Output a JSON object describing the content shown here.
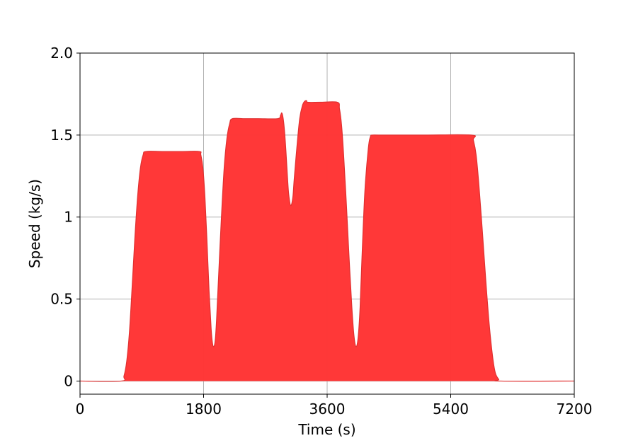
{
  "chart_data": {
    "type": "area",
    "xlabel": "Time (s)",
    "ylabel": "Speed (kg/s)",
    "xlim": [
      0,
      7200
    ],
    "ylim": [
      -0.08,
      2.0
    ],
    "xticks": [
      0,
      1800,
      3600,
      5400,
      7200
    ],
    "xtick_labels": [
      "0",
      "1800",
      "3600",
      "5400",
      "7200"
    ],
    "yticks": [
      0,
      0.5,
      1,
      1.5,
      2.0
    ],
    "ytick_labels": [
      "0",
      "0.5",
      "1",
      "1.5",
      "2.0"
    ],
    "grid": true,
    "series": [
      {
        "color": "#ff3434",
        "x": [
          0,
          600,
          640,
          680,
          720,
          760,
          800,
          840,
          880,
          920,
          960,
          1200,
          1500,
          1740,
          1760,
          1790,
          1820,
          1850,
          1880,
          1910,
          1930,
          1950,
          1970,
          1990,
          2020,
          2060,
          2100,
          2140,
          2180,
          2220,
          2400,
          2600,
          2880,
          2920,
          2940,
          2960,
          2980,
          3000,
          3020,
          3040,
          3070,
          3100,
          3120,
          3160,
          3200,
          3240,
          3270,
          3300,
          3320,
          3500,
          3750,
          3780,
          3810,
          3840,
          3880,
          3920,
          3960,
          3990,
          4020,
          4050,
          4080,
          4110,
          4150,
          4200,
          4230,
          4260,
          4400,
          5000,
          5700,
          5730,
          5770,
          5810,
          5860,
          5910,
          5960,
          6010,
          6050,
          6100,
          6130,
          7200
        ],
        "y": [
          0,
          0,
          0.03,
          0.12,
          0.3,
          0.58,
          0.88,
          1.13,
          1.3,
          1.38,
          1.4,
          1.4,
          1.4,
          1.4,
          1.38,
          1.3,
          1.12,
          0.85,
          0.55,
          0.32,
          0.23,
          0.21,
          0.25,
          0.38,
          0.65,
          1.0,
          1.3,
          1.48,
          1.57,
          1.6,
          1.6,
          1.6,
          1.6,
          1.62,
          1.635,
          1.6,
          1.52,
          1.4,
          1.26,
          1.14,
          1.07,
          1.12,
          1.23,
          1.43,
          1.6,
          1.68,
          1.705,
          1.71,
          1.7,
          1.7,
          1.7,
          1.66,
          1.56,
          1.38,
          1.08,
          0.75,
          0.45,
          0.28,
          0.21,
          0.26,
          0.45,
          0.78,
          1.16,
          1.42,
          1.49,
          1.5,
          1.5,
          1.5,
          1.5,
          1.47,
          1.38,
          1.2,
          0.92,
          0.62,
          0.35,
          0.15,
          0.05,
          0.01,
          0,
          0
        ]
      }
    ]
  }
}
